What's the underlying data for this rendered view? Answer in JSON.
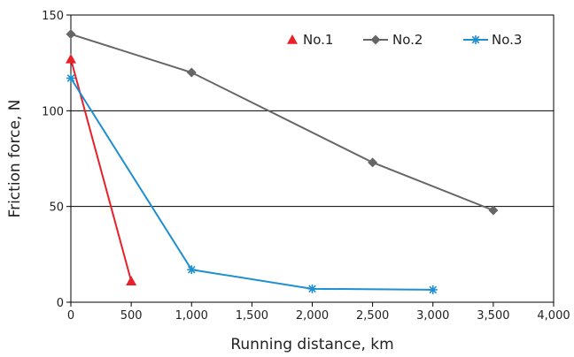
{
  "chart_data": {
    "type": "line",
    "title": "",
    "xlabel": "Running distance, km",
    "ylabel": "Friction force, N",
    "xlim": [
      0,
      4000
    ],
    "ylim": [
      0,
      150
    ],
    "xticks": [
      0,
      500,
      1000,
      1500,
      2000,
      2500,
      3000,
      3500,
      4000
    ],
    "xtick_labels": [
      "0",
      "500",
      "1,000",
      "1,500",
      "2,000",
      "2,500",
      "3,000",
      "3,500",
      "4,000"
    ],
    "yticks": [
      0,
      50,
      100,
      150
    ],
    "ytick_labels": [
      "0",
      "50",
      "100",
      "150"
    ],
    "grid": "horizontal at 50 and 100",
    "legend_position": "top-right",
    "series": [
      {
        "name": "No.1",
        "color": "#e8202a",
        "marker": "triangle",
        "x": [
          0,
          500
        ],
        "y": [
          127,
          11
        ]
      },
      {
        "name": "No.2",
        "color": "#666666",
        "marker": "diamond",
        "x": [
          0,
          1000,
          2500,
          3500
        ],
        "y": [
          140,
          120,
          73,
          48
        ]
      },
      {
        "name": "No.3",
        "color": "#1e8fd0",
        "marker": "asterisk",
        "x": [
          0,
          1000,
          2000,
          3000
        ],
        "y": [
          117,
          17,
          7,
          6.5
        ]
      }
    ]
  }
}
